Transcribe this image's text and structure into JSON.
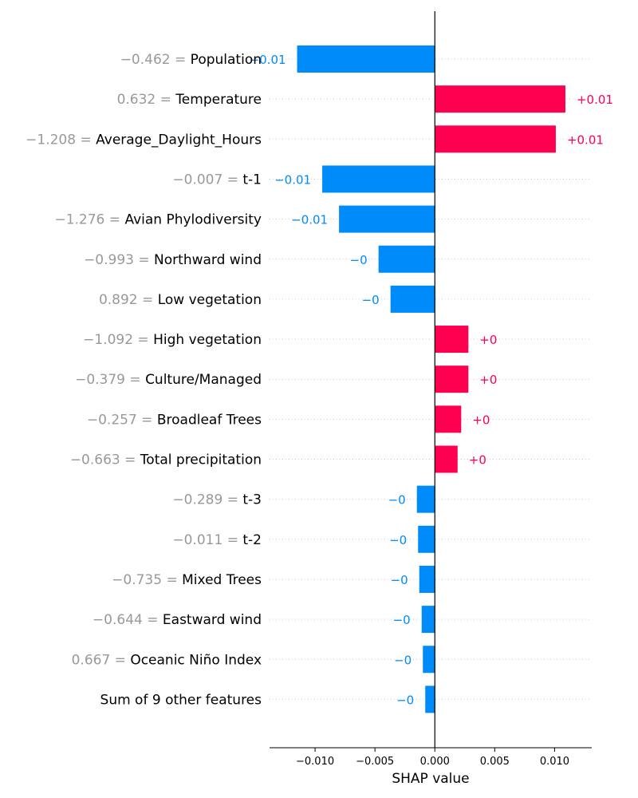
{
  "chart_data": {
    "type": "bar",
    "orientation": "horizontal",
    "title": "",
    "xlabel": "SHAP value",
    "ylabel": "",
    "xlim": [
      -0.0138,
      0.0131
    ],
    "xticks": [
      {
        "value": -0.01,
        "label": "−0.010"
      },
      {
        "value": -0.005,
        "label": "−0.005"
      },
      {
        "value": 0.0,
        "label": "0.000"
      },
      {
        "value": 0.005,
        "label": "0.005"
      },
      {
        "value": 0.01,
        "label": "0.010"
      }
    ],
    "grid": "horizontal dotted",
    "colors": {
      "positive": "#ff0051",
      "negative": "#008bfb",
      "feature_value": "#999999",
      "feature_name": "#000000"
    },
    "features": [
      {
        "value_text": "−0.462",
        "name": "Population",
        "shap": -0.0115,
        "label": "−0.01"
      },
      {
        "value_text": "0.632",
        "name": "Temperature",
        "shap": 0.0109,
        "label": "+0.01"
      },
      {
        "value_text": "−1.208",
        "name": "Average_Daylight_Hours",
        "shap": 0.0101,
        "label": "+0.01"
      },
      {
        "value_text": "−0.007",
        "name": "t-1",
        "shap": -0.0094,
        "label": "−0.01"
      },
      {
        "value_text": "−1.276",
        "name": "Avian Phylodiversity",
        "shap": -0.008,
        "label": "−0.01"
      },
      {
        "value_text": "−0.993",
        "name": "Northward wind",
        "shap": -0.0047,
        "label": "−0"
      },
      {
        "value_text": "0.892",
        "name": "Low vegetation",
        "shap": -0.0037,
        "label": "−0"
      },
      {
        "value_text": "−1.092",
        "name": "High vegetation",
        "shap": 0.0028,
        "label": "+0"
      },
      {
        "value_text": "−0.379",
        "name": "Culture/Managed",
        "shap": 0.0028,
        "label": "+0"
      },
      {
        "value_text": "−0.257",
        "name": "Broadleaf Trees",
        "shap": 0.0022,
        "label": "+0"
      },
      {
        "value_text": "−0.663",
        "name": "Total precipitation",
        "shap": 0.0019,
        "label": "+0"
      },
      {
        "value_text": "−0.289",
        "name": "t-3",
        "shap": -0.0015,
        "label": "−0"
      },
      {
        "value_text": "−0.011",
        "name": "t-2",
        "shap": -0.0014,
        "label": "−0"
      },
      {
        "value_text": "−0.735",
        "name": "Mixed Trees",
        "shap": -0.0013,
        "label": "−0"
      },
      {
        "value_text": "−0.644",
        "name": "Eastward wind",
        "shap": -0.0011,
        "label": "−0"
      },
      {
        "value_text": "0.667",
        "name": "Oceanic Niño Index",
        "shap": -0.001,
        "label": "−0"
      },
      {
        "value_text": "",
        "name": "Sum of 9 other features",
        "shap": -0.0008,
        "label": "−0"
      }
    ]
  }
}
